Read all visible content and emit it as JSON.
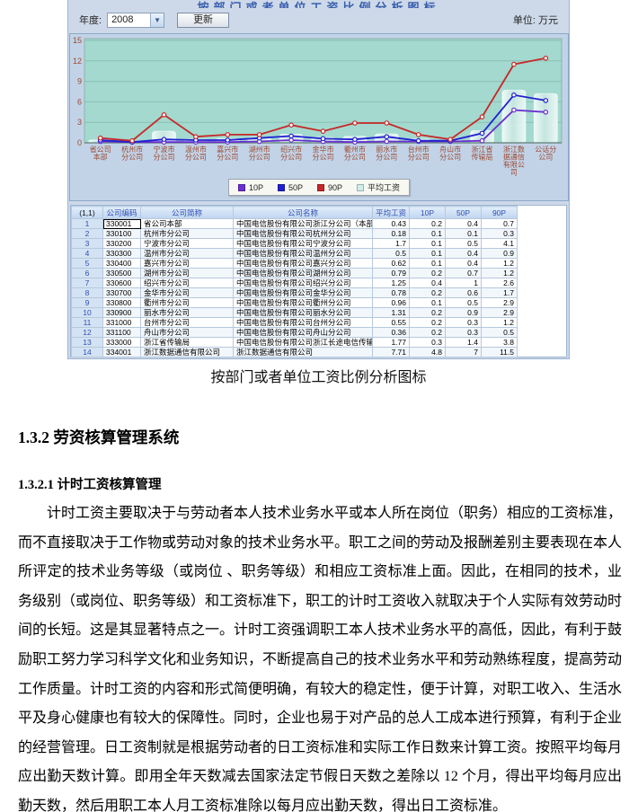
{
  "app": {
    "clipped_title": "按部门或者单位工资比例分析图标",
    "year_label": "年度:",
    "year_value": "2008",
    "refresh_button": "更新",
    "unit_label": "单位: 万元"
  },
  "chart_data": {
    "type": "bar",
    "title": "按部门或者单位工资比例分析",
    "unit": "万元",
    "categories": [
      "省公司本部",
      "杭州市分公司",
      "宁波市分公司",
      "温州市分公司",
      "嘉兴市分公司",
      "湖州市分公司",
      "绍兴市分公司",
      "金华市分公司",
      "衢州市分公司",
      "丽水市分公司",
      "台州市分公司",
      "舟山市分公司",
      "浙江省传输局",
      "浙江数据通信有限公司",
      "公话分公司"
    ],
    "series": [
      {
        "name": "平均工资",
        "type": "bar",
        "color": "#d8f0ec",
        "values": [
          0.43,
          0.18,
          1.7,
          0.5,
          0.62,
          0.79,
          1.25,
          0.78,
          0.96,
          1.31,
          0.55,
          0.36,
          1.77,
          7.71,
          7.2
        ]
      },
      {
        "name": "10P",
        "type": "line",
        "color": "#6a2fd0",
        "values": [
          0.2,
          0.1,
          0.1,
          0.1,
          0.1,
          0.2,
          0.4,
          0.2,
          0.1,
          0.2,
          0.2,
          0.2,
          0.3,
          4.8,
          4.5
        ]
      },
      {
        "name": "50P",
        "type": "line",
        "color": "#2020d0",
        "values": [
          0.4,
          0.1,
          0.5,
          0.4,
          0.4,
          0.7,
          1.0,
          0.6,
          0.5,
          0.9,
          0.3,
          0.3,
          1.4,
          7.0,
          6.2
        ]
      },
      {
        "name": "90P",
        "type": "line",
        "color": "#c62828",
        "values": [
          0.7,
          0.3,
          4.1,
          0.9,
          1.2,
          1.2,
          2.6,
          1.7,
          2.9,
          2.9,
          1.2,
          0.5,
          3.8,
          11.5,
          12.4
        ]
      }
    ],
    "ylim": [
      0,
      15
    ],
    "yticks": [
      0,
      3,
      6,
      9,
      12,
      15
    ],
    "grid": true,
    "legend_position": "bottom",
    "legend_items": [
      {
        "label": "10P",
        "color": "#6a2fd0"
      },
      {
        "label": "50P",
        "color": "#2020d0"
      },
      {
        "label": "90P",
        "color": "#c62828"
      },
      {
        "label": "平均工资",
        "color": "#cfeeea"
      }
    ],
    "colors": {
      "plot_bg": "#a3d9ce",
      "grid_line": "#8abfb4",
      "axis_text": "#9c4a32"
    }
  },
  "table": {
    "corner": "(1,1)",
    "columns": [
      "公司编码",
      "公司简称",
      "公司名称",
      "平均工资",
      "10P",
      "50P",
      "90P"
    ],
    "rows": [
      [
        "1",
        "330001",
        "省公司本部",
        "中国电信股份有限公司浙江分公司（本部）",
        "0.43",
        "0.2",
        "0.4",
        "0.7"
      ],
      [
        "2",
        "330100",
        "杭州市分公司",
        "中国电信股份有限公司杭州分公司",
        "0.18",
        "0.1",
        "0.1",
        "0.3"
      ],
      [
        "3",
        "330200",
        "宁波市分公司",
        "中国电信股份有限公司宁波分公司",
        "1.7",
        "0.1",
        "0.5",
        "4.1"
      ],
      [
        "4",
        "330300",
        "温州市分公司",
        "中国电信股份有限公司温州分公司",
        "0.5",
        "0.1",
        "0.4",
        "0.9"
      ],
      [
        "5",
        "330400",
        "嘉兴市分公司",
        "中国电信股份有限公司嘉兴分公司",
        "0.62",
        "0.1",
        "0.4",
        "1.2"
      ],
      [
        "6",
        "330500",
        "湖州市分公司",
        "中国电信股份有限公司湖州分公司",
        "0.79",
        "0.2",
        "0.7",
        "1.2"
      ],
      [
        "7",
        "330600",
        "绍兴市分公司",
        "中国电信股份有限公司绍兴分公司",
        "1.25",
        "0.4",
        "1",
        "2.6"
      ],
      [
        "8",
        "330700",
        "金华市分公司",
        "中国电信股份有限公司金华分公司",
        "0.78",
        "0.2",
        "0.6",
        "1.7"
      ],
      [
        "9",
        "330800",
        "衢州市分公司",
        "中国电信股份有限公司衢州分公司",
        "0.96",
        "0.1",
        "0.5",
        "2.9"
      ],
      [
        "10",
        "330900",
        "丽水市分公司",
        "中国电信股份有限公司丽水分公司",
        "1.31",
        "0.2",
        "0.9",
        "2.9"
      ],
      [
        "11",
        "331000",
        "台州市分公司",
        "中国电信股份有限公司台州分公司",
        "0.55",
        "0.2",
        "0.3",
        "1.2"
      ],
      [
        "12",
        "331100",
        "舟山市分公司",
        "中国电信股份有限公司舟山分公司",
        "0.36",
        "0.2",
        "0.3",
        "0.5"
      ],
      [
        "13",
        "333000",
        "浙江省传输局",
        "中国电信股份有限公司浙江长途电信传输局",
        "1.77",
        "0.3",
        "1.4",
        "3.8"
      ],
      [
        "14",
        "334001",
        "浙江数据通信有限公司",
        "浙江数据通信有限公司",
        "7.71",
        "4.8",
        "7",
        "11.5"
      ]
    ]
  },
  "document": {
    "caption": "按部门或者单位工资比例分析图标",
    "heading1": "1.3.2 劳资核算管理系统",
    "heading2": "1.3.2.1 计时工资核算管理",
    "paragraph": "计时工资主要取决于与劳动者本人技术业务水平或本人所在岗位（职务）相应的工资标准，而不直接取决于工作物或劳动对象的技术业务水平。职工之间的劳动及报酬差别主要表现在本人所评定的技术业务等级（或岗位 、职务等级）和相应工资标准上面。因此，在相同的技术，业务级别（或岗位、职务等级）和工资标准下，职工的计时工资收入就取决于个人实际有效劳动时间的长短。这是其显著特点之一。计时工资强调职工本人技术业务水平的高低，因此，有利于鼓励职工努力学习科学文化和业务知识，不断提高自己的技术业务水平和劳动熟练程度，提高劳动工作质量。计时工资的内容和形式简便明确，有较大的稳定性，便于计算，对职工收入、生活水平及身心健康也有较大的保障性。同时，企业也易于对产品的总人工成本进行预算，有利于企业的经营管理。日工资制就是根据劳动者的日工资标准和实际工作日数来计算工资。按照平均每月应出勤天数计算。即用全年天数减去国家法定节假日天数之差除以 12 个月，得出平均每月应出勤天数，然后用职工本人月工资标准除以每月应出勤天数，得出日工资标准。"
  }
}
